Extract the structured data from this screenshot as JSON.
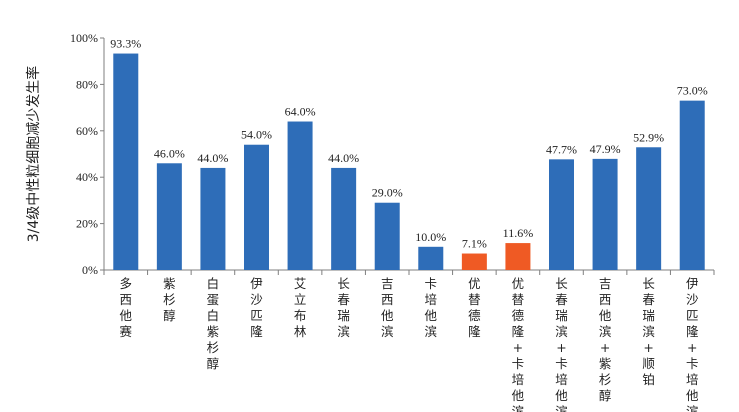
{
  "chart_data": {
    "type": "bar",
    "ylabel": "3/4级中性粒细胞减少发生率",
    "ylim": [
      0,
      100
    ],
    "yticks": [
      "0%",
      "20%",
      "40%",
      "60%",
      "80%",
      "100%"
    ],
    "categories": [
      "多西他赛",
      "紫杉醇",
      "白蛋白紫杉醇",
      "伊沙匹隆",
      "艾立布林",
      "长春瑞滨",
      "吉西他滨",
      "卡培他滨",
      "优替德隆",
      "优替德隆+卡培他滨",
      "长春瑞滨+卡培他滨",
      "吉西他滨+紫杉醇",
      "长春瑞滨+顺铂",
      "伊沙匹隆+卡培他滨"
    ],
    "values": [
      93.3,
      46.0,
      44.0,
      54.0,
      64.0,
      44.0,
      29.0,
      10.0,
      7.1,
      11.6,
      47.7,
      47.9,
      52.9,
      73.0
    ],
    "labels": [
      "93.3%",
      "46.0%",
      "44.0%",
      "54.0%",
      "64.0%",
      "44.0%",
      "29.0%",
      "10.0%",
      "7.1%",
      "11.6%",
      "47.7%",
      "47.9%",
      "52.9%",
      "73.0%"
    ],
    "highlight": [
      8,
      9
    ],
    "colors": {
      "default": "#2e6db8",
      "highlight": "#ef5a24",
      "axis": "#7f7f7f"
    },
    "grid": false,
    "legend": "none"
  }
}
